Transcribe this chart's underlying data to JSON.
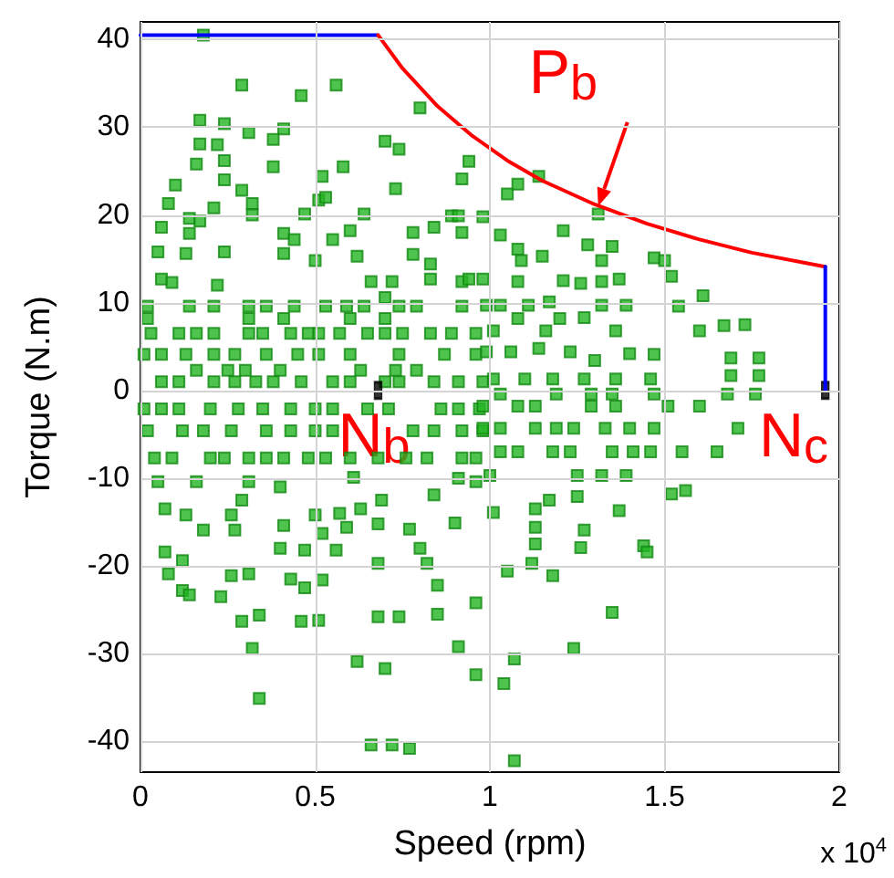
{
  "chart_data": {
    "type": "scatter",
    "xlabel": "Speed (rpm)",
    "ylabel": "Torque (N.m)",
    "xlim": [
      0,
      2
    ],
    "xticks": [
      0,
      0.5,
      1,
      1.5,
      2
    ],
    "ylim": [
      -43.5,
      42
    ],
    "yticks": [
      -40,
      -30,
      -20,
      -10,
      0,
      10,
      20,
      30,
      40
    ],
    "grid": true,
    "marker": "square",
    "annotations": [
      {
        "text": "P$_{b}$",
        "x": 1.31,
        "y": 21
      },
      {
        "text": "N$_{b}$",
        "x": 0.68,
        "y": 0
      },
      {
        "text": "N$_{c}$",
        "x": 1.96,
        "y": 0
      },
      "x 10$^{4}$"
    ],
    "series": [
      {
        "color": "#22b422",
        "x": [
          0.18,
          0.29,
          0.56,
          0.46,
          0.8,
          0.17,
          0.24,
          0.31,
          0.41,
          0.38,
          0.17,
          0.22,
          0.7,
          0.74,
          0.16,
          0.24,
          0.38,
          0.58,
          0.52,
          0.24,
          0.94,
          0.92,
          0.1,
          0.29,
          0.73,
          0.08,
          0.21,
          0.32,
          0.51,
          0.53,
          0.14,
          0.17,
          0.32,
          0.47,
          0.64,
          0.06,
          0.14,
          0.41,
          0.44,
          0.55,
          0.6,
          0.78,
          0.84,
          0.89,
          0.91,
          0.92,
          0.05,
          0.13,
          0.24,
          0.41,
          0.62,
          0.5,
          0.78,
          0.83,
          0.06,
          0.09,
          0.22,
          0.66,
          0.72,
          0.7,
          0.83,
          0.92,
          0.94
        ],
        "values": [
          40.5,
          34.8,
          34.8,
          33.6,
          32.2,
          30.8,
          30.4,
          29.4,
          29.8,
          28.6,
          28.1,
          28,
          28.4,
          27.5,
          25.8,
          26.2,
          25.5,
          25.5,
          24.4,
          24,
          26.1,
          24.1,
          23.4,
          22.8,
          23,
          21.3,
          20.8,
          21.3,
          21.7,
          22,
          19.6,
          19.3,
          20,
          20.1,
          20.1,
          18.6,
          17.9,
          17.9,
          17.2,
          17.2,
          18.2,
          18,
          18.6,
          19.9,
          19.9,
          18,
          15.8,
          15.6,
          15.8,
          15.6,
          15.3,
          14.8,
          15.5,
          14.4,
          12.7,
          12.3,
          12,
          12.4,
          12.4,
          10.6,
          12.7,
          12.4,
          12.7
        ]
      },
      {
        "color": "#22b422",
        "x": [
          0.02,
          0.14,
          0.21,
          0.31,
          0.36,
          0.44,
          0.53,
          0.59,
          0.64,
          0.74,
          0.79,
          0.92,
          0.02,
          0.31,
          0.41,
          0.6,
          0.7,
          0.03,
          0.11,
          0.16,
          0.21,
          0.31,
          0.35,
          0.43,
          0.48,
          0.51,
          0.57,
          0.65,
          0.7,
          0.75,
          0.83,
          0.89,
          0.96,
          0.01,
          0.06,
          0.13,
          0.21,
          0.27,
          0.36,
          0.45,
          0.51,
          0.6,
          0.74,
          0.87,
          0.96,
          0.16,
          0.25,
          0.3,
          0.4,
          0.63,
          0.73,
          0.79,
          0.06,
          0.11,
          0.21,
          0.27,
          0.33,
          0.38,
          0.46,
          0.55,
          0.6,
          0.7,
          0.74,
          0.84,
          0.91,
          0.98,
          0.01,
          0.06,
          0.11,
          0.2,
          0.28,
          0.35,
          0.43,
          0.5,
          0.55,
          0.65,
          0.71,
          0.86,
          0.91,
          0.97,
          0.02,
          0.12,
          0.18,
          0.26,
          0.36,
          0.43,
          0.5,
          0.55,
          0.78,
          0.84,
          0.92,
          0.98,
          0.04,
          0.09,
          0.2,
          0.24,
          0.31,
          0.36,
          0.41,
          0.48,
          0.53,
          0.6,
          0.68,
          0.76,
          0.82,
          0.92,
          0.96
        ],
        "values": [
          9.6,
          9.6,
          9.6,
          9.6,
          9.6,
          9.6,
          9.6,
          9.6,
          9.6,
          9.6,
          9.6,
          9.6,
          8.2,
          8.2,
          8.2,
          8.2,
          8.2,
          6.5,
          6.5,
          6.5,
          6.5,
          6.5,
          6.5,
          6.5,
          6.5,
          6.5,
          6.5,
          6.5,
          6.5,
          6.5,
          6.5,
          6.5,
          6.5,
          4.1,
          4.1,
          4.1,
          4.1,
          4.1,
          4.1,
          4.1,
          4.1,
          4.1,
          4.1,
          4.1,
          4.1,
          2.3,
          2.3,
          2.3,
          2.3,
          2.3,
          2.3,
          2.3,
          1,
          1,
          1,
          1,
          1,
          1,
          1,
          1,
          1,
          1,
          1,
          1,
          1,
          1,
          -2.1,
          -2.1,
          -2.1,
          -2.1,
          -2.1,
          -2.1,
          -2.1,
          -2.1,
          -2.1,
          -2.1,
          -2.1,
          -2.1,
          -2.1,
          -2.1,
          -4.6,
          -4.6,
          -4.6,
          -4.6,
          -4.6,
          -4.6,
          -4.6,
          -4.6,
          -4.6,
          -4.6,
          -4.6,
          -4.6,
          -7.7,
          -7.7,
          -7.7,
          -7.7,
          -7.7,
          -7.7,
          -7.7,
          -7.7,
          -7.7,
          -7.7,
          -7.7,
          -7.7,
          -7.7,
          -7.7,
          -7.7
        ]
      },
      {
        "color": "#22b422",
        "x": [
          1.05,
          1.08,
          1.14,
          1.31,
          0.98,
          1.03,
          1.21,
          1.28,
          1.35,
          1.08,
          1.15,
          1.09,
          1.32,
          1.47,
          1.5,
          1.52,
          0.98,
          1.08,
          1.21,
          1.26,
          1.32,
          1.37,
          1.61,
          0.99,
          1.03,
          1.11,
          1.17,
          1.2,
          1.27,
          1.32,
          1.39,
          1.54,
          1.08,
          1.01,
          1.16,
          1.36,
          1.6,
          1.67,
          1.73,
          0.99,
          1.06,
          1.14,
          1.23,
          1.3,
          1.4,
          1.47,
          1.69,
          1.77,
          1.01,
          1.1,
          1.18,
          1.27,
          1.36,
          1.46,
          1.69,
          1.77
        ],
        "values": [
          22.4,
          23.5,
          24.4,
          20.1,
          19.8,
          17.7,
          18.2,
          16.6,
          16.4,
          16.1,
          15.3,
          14.8,
          14.8,
          15.1,
          14.8,
          13,
          12.7,
          12.4,
          12.5,
          12.2,
          12.4,
          12.7,
          10.8,
          9.7,
          9.7,
          9.7,
          10.1,
          8.2,
          8.3,
          9.7,
          9.7,
          9.6,
          8.2,
          6.8,
          6.8,
          6.8,
          6.8,
          7.4,
          7.5,
          4.4,
          4.4,
          4.8,
          4.4,
          3.4,
          4.2,
          4.1,
          3.7,
          3.7,
          1.3,
          1.3,
          1.3,
          1.3,
          1.3,
          1.3,
          1.7,
          1.7
        ]
      },
      {
        "color": "#22b422",
        "x": [
          0.05,
          0.16,
          0.31,
          0.4,
          0.61,
          0.69,
          0.84,
          0.91,
          0.96,
          0.07,
          0.13,
          0.29,
          0.18,
          0.26,
          0.27,
          0.41,
          0.5,
          0.52,
          0.57,
          0.63,
          0.59,
          0.68,
          0.77,
          0.9,
          0.07,
          0.12,
          0.4,
          0.47,
          0.56,
          0.68,
          0.8,
          0.82,
          0.08,
          0.12,
          0.14,
          0.26,
          0.31,
          0.23,
          0.43,
          0.47,
          0.52,
          0.85,
          0.29,
          0.34,
          0.46,
          0.51,
          0.68,
          0.74,
          0.85,
          0.96,
          0.32,
          0.62,
          0.7,
          0.91,
          0.96,
          0.34,
          0.66,
          0.72,
          0.77
        ],
        "values": [
          -10.4,
          -10.4,
          -10.4,
          -11,
          -9.9,
          -12.5,
          -11.9,
          -10,
          -10.4,
          -13.5,
          -14.2,
          -12.5,
          -15.9,
          -14.2,
          -15.9,
          -15.4,
          -14.2,
          -16.3,
          -14,
          -13.5,
          -15.6,
          -15.2,
          -15.8,
          -15.1,
          -18.4,
          -19.4,
          -18,
          -18.2,
          -18.2,
          -19.7,
          -18,
          -19.7,
          -20.9,
          -22.8,
          -23.3,
          -21.1,
          -20.9,
          -23.5,
          -21.5,
          -22.5,
          -21.6,
          -22.2,
          -26.3,
          -25.6,
          -26.3,
          -26.2,
          -25.8,
          -25.8,
          -25.5,
          -24.2,
          -29.4,
          -30.9,
          -31.7,
          -29.2,
          -32.4,
          -35.1,
          -40.4,
          -40.4,
          -40.8
        ]
      },
      {
        "color": "#22b422",
        "x": [
          1.03,
          1.19,
          1.29,
          1.35,
          1.47,
          1.68,
          1.76,
          0.98,
          1.08,
          1.13,
          1.29,
          1.36,
          1.51,
          1.6,
          0.98,
          1.03,
          1.13,
          1.19,
          1.24,
          1.33,
          1.4,
          1.47,
          1.71,
          1.03,
          1.08,
          1.18,
          1.23,
          1.35,
          1.41,
          1.46,
          1.55,
          1.65,
          1,
          1.25,
          1.32,
          1.39,
          1.25,
          1.52,
          1.56,
          1.01,
          1.13,
          1.17,
          1.37,
          1.13,
          1.27,
          1.13,
          1.26,
          1.44,
          1.45,
          1.12,
          1.05,
          1.18,
          1.35,
          1.24,
          1.07,
          1.04,
          1.07
        ],
        "values": [
          -0.4,
          -0.4,
          -0.4,
          -0.4,
          -0.4,
          -0.4,
          -0.4,
          -1.8,
          -1.8,
          -1.8,
          -1.8,
          -1.8,
          -1.8,
          -1.8,
          -4.3,
          -4.3,
          -4.3,
          -4.3,
          -4.3,
          -4.3,
          -4.3,
          -4.3,
          -4.3,
          -7,
          -7,
          -7,
          -7,
          -7,
          -7,
          -7,
          -7,
          -7,
          -9.7,
          -9.7,
          -9.7,
          -9.7,
          -12.1,
          -11.8,
          -11.4,
          -13.9,
          -13.5,
          -12.5,
          -13.7,
          -15.6,
          -15.9,
          -17.5,
          -17.9,
          -17.7,
          -18.4,
          -19.7,
          -20.6,
          -21.1,
          -25.3,
          -29.4,
          -30.6,
          -33.4,
          -42.2
        ]
      },
      {
        "type": "line",
        "color": "#0000ff",
        "marker": "none",
        "x": [
          0,
          0.68
        ],
        "values": [
          40.5,
          40.5
        ]
      },
      {
        "type": "line",
        "color": "#ff0000",
        "marker": "none",
        "x": [
          0.68,
          0.75,
          0.85,
          0.95,
          1.05,
          1.15,
          1.3,
          1.45,
          1.6,
          1.75,
          1.96
        ],
        "values": [
          40.5,
          36.7,
          32.4,
          29,
          26.2,
          23.9,
          21.2,
          19,
          17.2,
          15.7,
          14.1
        ]
      },
      {
        "type": "line",
        "color": "#0000ff",
        "marker": "none",
        "x": [
          1.96,
          1.96
        ],
        "values": [
          14.1,
          0
        ]
      },
      {
        "type": "scatter",
        "color": "#000000",
        "marker": "square",
        "x": [
          0.68,
          1.96
        ],
        "values": [
          0,
          0
        ]
      }
    ]
  }
}
